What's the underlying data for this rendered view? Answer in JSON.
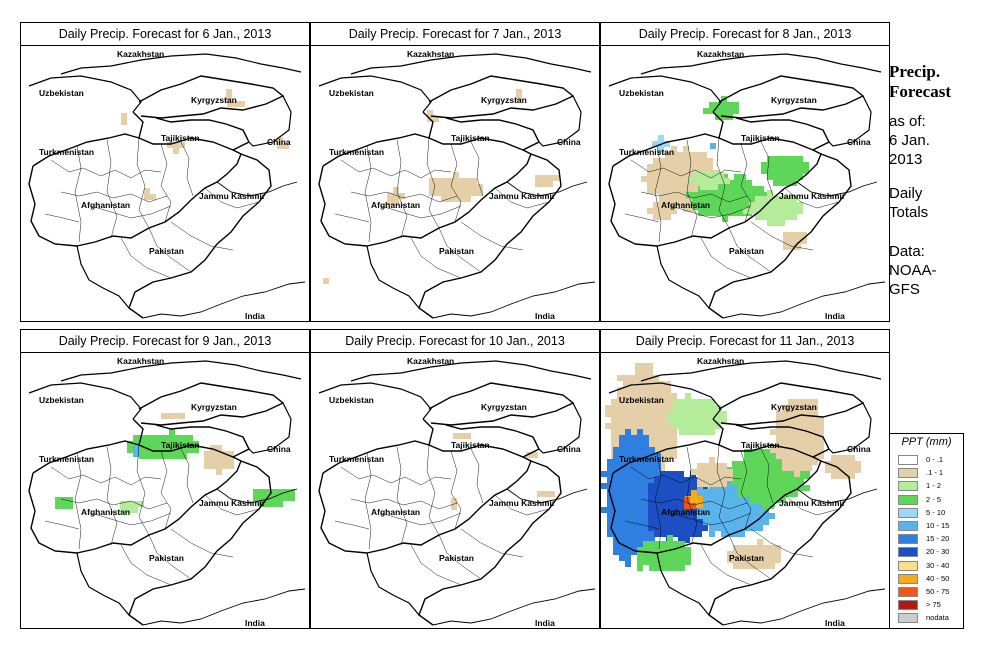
{
  "panels": [
    {
      "title": "Daily Precip. Forecast for  6 Jan., 2013",
      "day": 6
    },
    {
      "title": "Daily Precip. Forecast for  7 Jan., 2013",
      "day": 7
    },
    {
      "title": "Daily Precip. Forecast for  8 Jan., 2013",
      "day": 8
    },
    {
      "title": "Daily Precip. Forecast for  9 Jan., 2013",
      "day": 9
    },
    {
      "title": "Daily Precip. Forecast for  10 Jan., 2013",
      "day": 10
    },
    {
      "title": "Daily Precip. Forecast for  11 Jan., 2013",
      "day": 11
    }
  ],
  "map_labels": {
    "kazakhstan": "Kazakhstan",
    "uzbekistan": "Uzbekistan",
    "kyrgyzstan": "Kyrgyzstan",
    "tajikistan": "Tajikistan",
    "china": "China",
    "turkmenistan": "Turkmenistan",
    "jammu": "Jammu Kashmir",
    "afghanistan": "Afghanistan",
    "pakistan": "Pakistan",
    "india": "India"
  },
  "side": {
    "title_line1": "Precip.",
    "title_line2": "Forecast",
    "asof_line1": "as of:",
    "asof_line2": "6 Jan.",
    "asof_line3": "2013",
    "totals_line1": "Daily",
    "totals_line2": "Totals",
    "data_line1": "Data:",
    "data_line2": "NOAA-",
    "data_line3": "GFS"
  },
  "legend": {
    "title": "PPT (mm)",
    "items": [
      {
        "label": "0 - .1",
        "color": "#ffffff"
      },
      {
        "label": ".1 - 1",
        "color": "#e4cfa8"
      },
      {
        "label": "1 - 2",
        "color": "#b4ec9a"
      },
      {
        "label": "2 - 5",
        "color": "#5ed65a"
      },
      {
        "label": "5 - 10",
        "color": "#9fd8f4"
      },
      {
        "label": "10 - 15",
        "color": "#5ab4ec"
      },
      {
        "label": "15 - 20",
        "color": "#2f7fe0"
      },
      {
        "label": "20 - 30",
        "color": "#1c4fc4"
      },
      {
        "label": "30 - 40",
        "color": "#f6e08a"
      },
      {
        "label": "40 - 50",
        "color": "#f6aa1c"
      },
      {
        "label": "50 - 75",
        "color": "#ee5a16"
      },
      {
        "label": "> 75",
        "color": "#b01a10"
      },
      {
        "label": "nodata",
        "color": "#cccccc"
      }
    ]
  }
}
